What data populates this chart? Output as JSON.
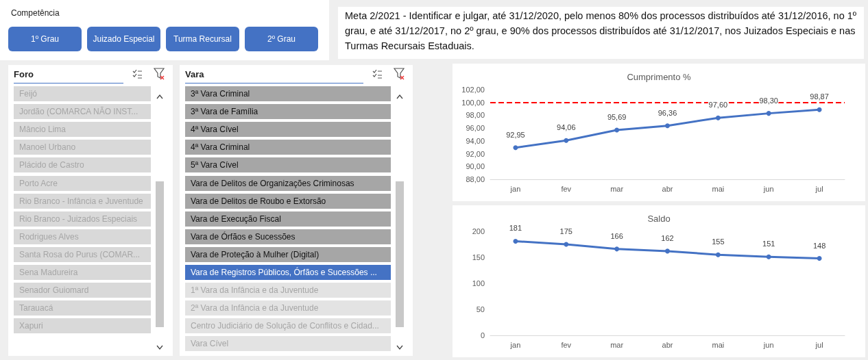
{
  "chart_data": [
    {
      "type": "other",
      "title": "Competência",
      "annotations": [
        "1º Grau",
        "Juizado Especial",
        "Turma Recursal",
        "2º Grau"
      ],
      "colors": [
        "#4472c4",
        "#4472c4",
        "#4472c4",
        "#4472c4"
      ]
    },
    {
      "type": "other",
      "annotations": [
        "Meta 2/2021 - Identificar e julgar, até 31/12/2020, pelo menos 80% dos processos distribuídos até 31/12/2016, no 1º grau, e até 31/12/2017, no 2º grau, e 90% dos processos distribuídos até 31/12/2017, nos Juizados Especiais e nas Turmas Recursais Estaduais."
      ]
    },
    {
      "type": "other",
      "title": "Foro",
      "annotations": [
        "Feijó",
        "Jordão (COMARCA NÃO INST...",
        "Mâncio Lima",
        "Manoel Urbano",
        "Plácido de Castro",
        "Porto Acre",
        "Rio Branco - Infância e Juventude",
        "Rio Branco - Juizados Especiais",
        "Rodrigues Alves",
        "Santa Rosa do Purus (COMAR...",
        "Sena Madureira",
        "Senador Guiomard",
        "Tarauacá",
        "Xapuri"
      ],
      "colors": [
        "#d9d9d9",
        "#d9d9d9",
        "#d9d9d9",
        "#d9d9d9",
        "#d9d9d9",
        "#d9d9d9",
        "#d9d9d9",
        "#d9d9d9",
        "#d9d9d9",
        "#d9d9d9",
        "#d9d9d9",
        "#d9d9d9",
        "#d9d9d9",
        "#d9d9d9"
      ]
    },
    {
      "type": "other",
      "title": "Vara",
      "annotations": [
        "3ª Vara Criminal",
        "3ª Vara de Família",
        "4ª Vara Cível",
        "4ª Vara Criminal",
        "5ª Vara Cível",
        "Vara de Delitos de Organizações Criminosas",
        "Vara de Delitos de Roubo e Extorsão",
        "Vara de Execução Fiscal",
        "Vara de Órfãos e Sucessões",
        "Vara de Proteção à Mulher (Digital)",
        "Vara de Registros Públicos, Órfãos e Sucessões ...",
        "1ª Vara da Infância e da Juventude",
        "2ª Vara da Infância e da Juventude",
        "Centro Judiciário de Solução de Conflitos e Cidad...",
        "Vara Cível"
      ],
      "colors": [
        "#a6a6a6",
        "#a6a6a6",
        "#a6a6a6",
        "#a6a6a6",
        "#a6a6a6",
        "#a6a6a6",
        "#a6a6a6",
        "#a6a6a6",
        "#a6a6a6",
        "#a6a6a6",
        "#4472c4",
        "#e3e3e3",
        "#e3e3e3",
        "#e3e3e3",
        "#e3e3e3"
      ]
    },
    {
      "type": "line",
      "title": "Cumprimento %",
      "categories": [
        "jan",
        "fev",
        "mar",
        "abr",
        "mai",
        "jun",
        "jul"
      ],
      "series": [
        {
          "color": "#4472c4",
          "values": [
            92.95,
            94.06,
            95.69,
            96.36,
            97.6,
            98.3,
            98.87
          ],
          "value_labels": [
            "92,95",
            "94,06",
            "95,69",
            "96,36",
            "97,60",
            "98,30",
            "98,87"
          ]
        }
      ],
      "ylim": [
        88,
        102
      ],
      "yticks": [
        {
          "value": 88,
          "label": "88,00"
        },
        {
          "value": 90,
          "label": "90,00"
        },
        {
          "value": 92,
          "label": "92,00"
        },
        {
          "value": 94,
          "label": "94,00"
        },
        {
          "value": 96,
          "label": "96,00"
        },
        {
          "value": 98,
          "label": "98,00"
        },
        {
          "value": 100,
          "label": "100,00"
        },
        {
          "value": 102,
          "label": "102,00"
        }
      ],
      "ref_lines": [
        {
          "axis": "y",
          "value": 100,
          "color": "#ff0000",
          "line_style": "dashed"
        }
      ],
      "marker": "circle",
      "line_style": "solid"
    },
    {
      "type": "line",
      "title": "Saldo",
      "categories": [
        "jan",
        "fev",
        "mar",
        "abr",
        "mai",
        "jun",
        "jul"
      ],
      "series": [
        {
          "color": "#4472c4",
          "values": [
            181,
            175,
            166,
            162,
            155,
            151,
            148
          ]
        }
      ],
      "ylim": [
        0,
        200
      ],
      "yticks": [
        0,
        50,
        100,
        150,
        200
      ],
      "data_labels": true,
      "marker": "circle",
      "line_style": "solid"
    }
  ]
}
